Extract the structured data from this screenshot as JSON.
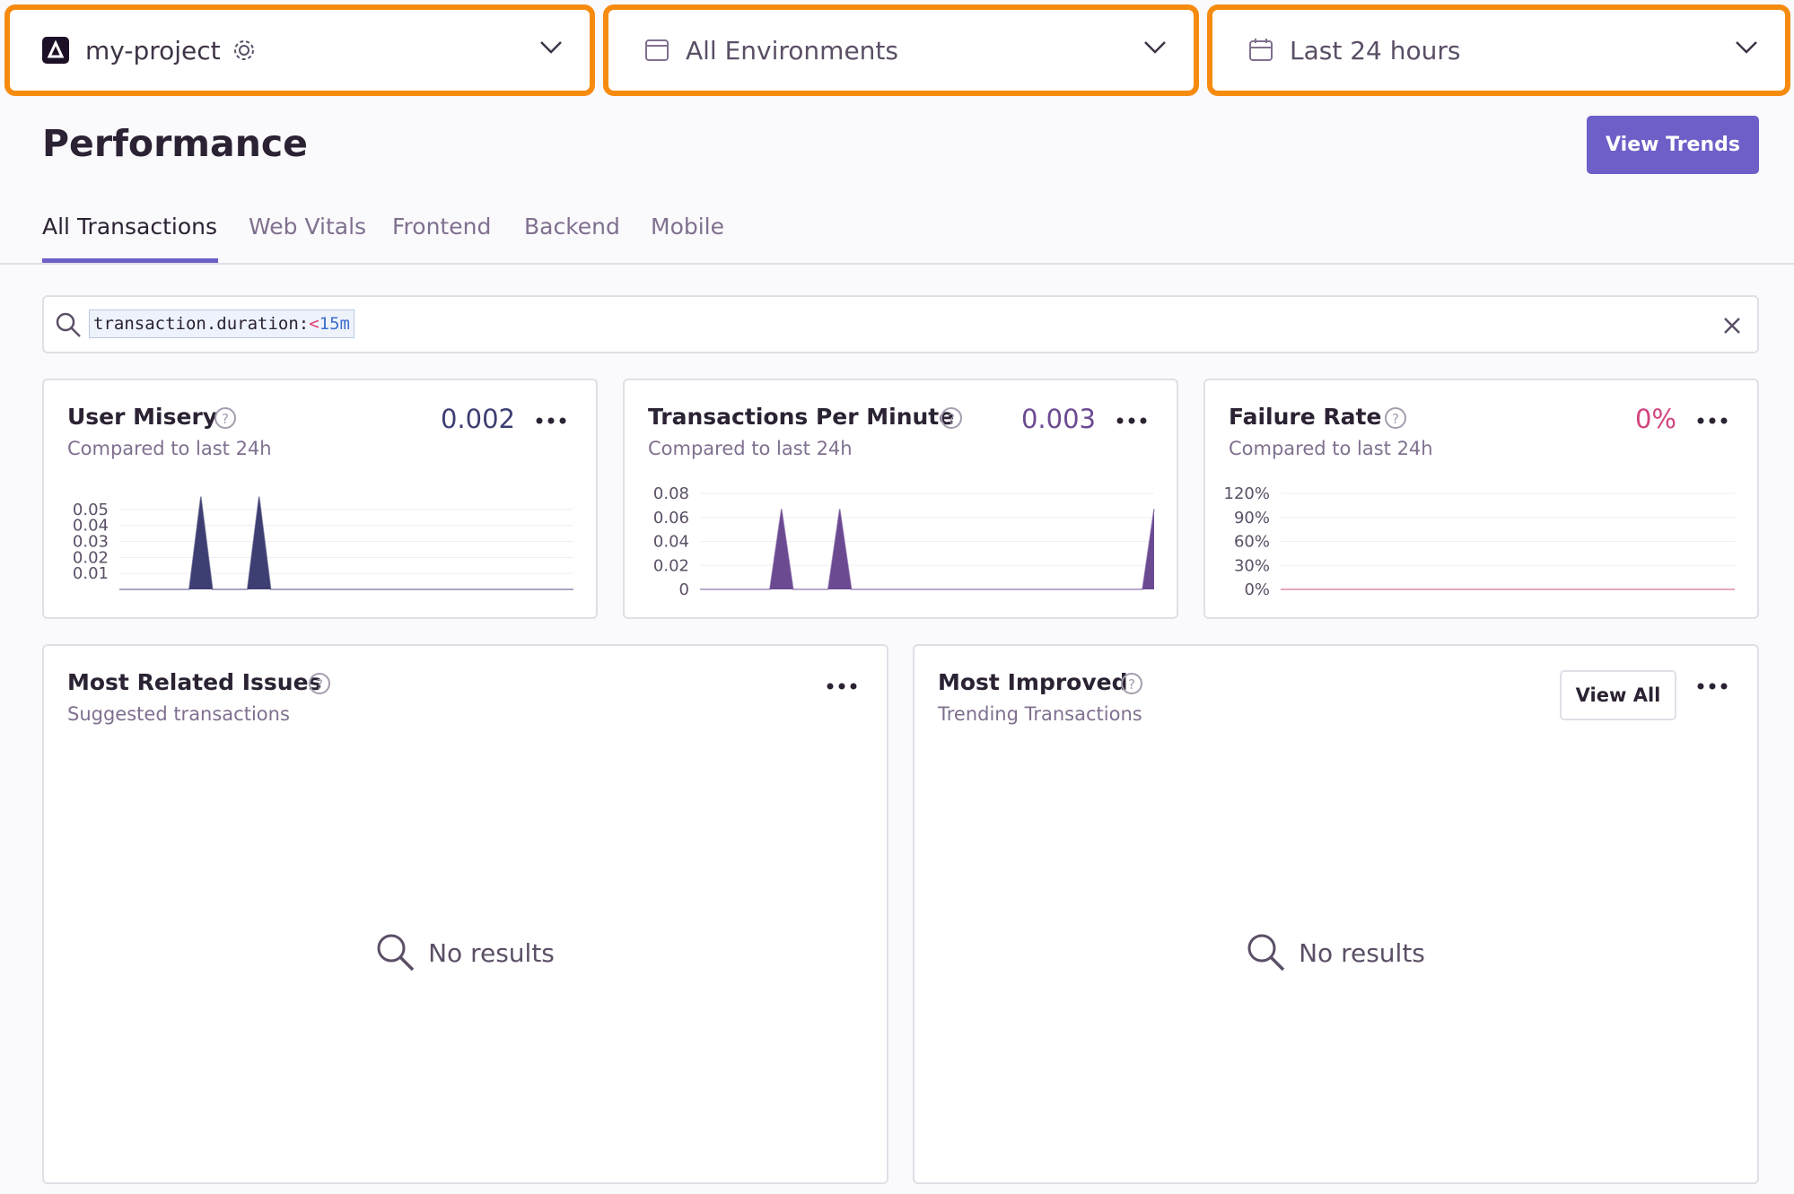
{
  "header": {
    "project": "my-project",
    "environment": "All Environments",
    "period": "Last 24 hours"
  },
  "page": {
    "title": "Performance",
    "button": "View Trends"
  },
  "tabs": [
    "All Transactions",
    "Web Vitals",
    "Frontend",
    "Backend",
    "Mobile"
  ],
  "search": {
    "key": "transaction.duration:",
    "operator": "<",
    "value": "15m"
  },
  "widgets": [
    {
      "title": "User Misery",
      "subtitle": "Compared to last 24h",
      "value": "0.002",
      "chart": {
        "type": "area",
        "color": "#3d3e72",
        "ylim": [
          0,
          0.06
        ],
        "yticks": [
          0.01,
          0.02,
          0.03,
          0.04,
          0.05
        ],
        "values": [
          0,
          0,
          0,
          0,
          0,
          0,
          0,
          0.058,
          0,
          0,
          0,
          0,
          0.058,
          0,
          0,
          0,
          0,
          0,
          0,
          0,
          0,
          0,
          0,
          0,
          0,
          0,
          0,
          0,
          0,
          0,
          0,
          0,
          0,
          0,
          0,
          0,
          0,
          0,
          0,
          0
        ]
      }
    },
    {
      "title": "Transactions Per Minute",
      "subtitle": "Compared to last 24h",
      "value": "0.003",
      "chart": {
        "type": "area",
        "color": "#6c4a92",
        "ylim": [
          0,
          0.08
        ],
        "yticks": [
          0,
          0.02,
          0.04,
          0.06,
          0.08
        ],
        "values": [
          0,
          0,
          0,
          0,
          0,
          0,
          0,
          0.067,
          0,
          0,
          0,
          0,
          0.067,
          0,
          0,
          0,
          0,
          0,
          0,
          0,
          0,
          0,
          0,
          0,
          0,
          0,
          0,
          0,
          0,
          0,
          0,
          0,
          0,
          0,
          0,
          0,
          0,
          0,
          0,
          0.067
        ]
      }
    },
    {
      "title": "Failure Rate",
      "subtitle": "Compared to last 24h",
      "value": "0%",
      "chart": {
        "type": "area",
        "color": "#d2447f",
        "ylim": [
          0,
          120
        ],
        "yticks": [
          {
            "value": 0,
            "label": "0%"
          },
          {
            "value": 30,
            "label": "30%"
          },
          {
            "value": 60,
            "label": "60%"
          },
          {
            "value": 90,
            "label": "90%"
          },
          {
            "value": 120,
            "label": "120%"
          }
        ],
        "values": [
          0,
          0,
          0,
          0,
          0,
          0,
          0,
          0,
          0,
          0,
          0,
          0,
          0,
          0,
          0,
          0,
          0,
          0,
          0,
          0,
          0,
          0,
          0,
          0,
          0,
          0,
          0,
          0,
          0,
          0,
          0,
          0,
          0,
          0,
          0,
          0,
          0,
          0,
          0,
          0
        ]
      }
    }
  ],
  "panels": [
    {
      "title": "Most Related Issues",
      "subtitle": "Suggested transactions",
      "empty": "No results"
    },
    {
      "title": "Most Improved",
      "subtitle": "Trending Transactions",
      "button": "View All",
      "empty": "No results"
    }
  ]
}
